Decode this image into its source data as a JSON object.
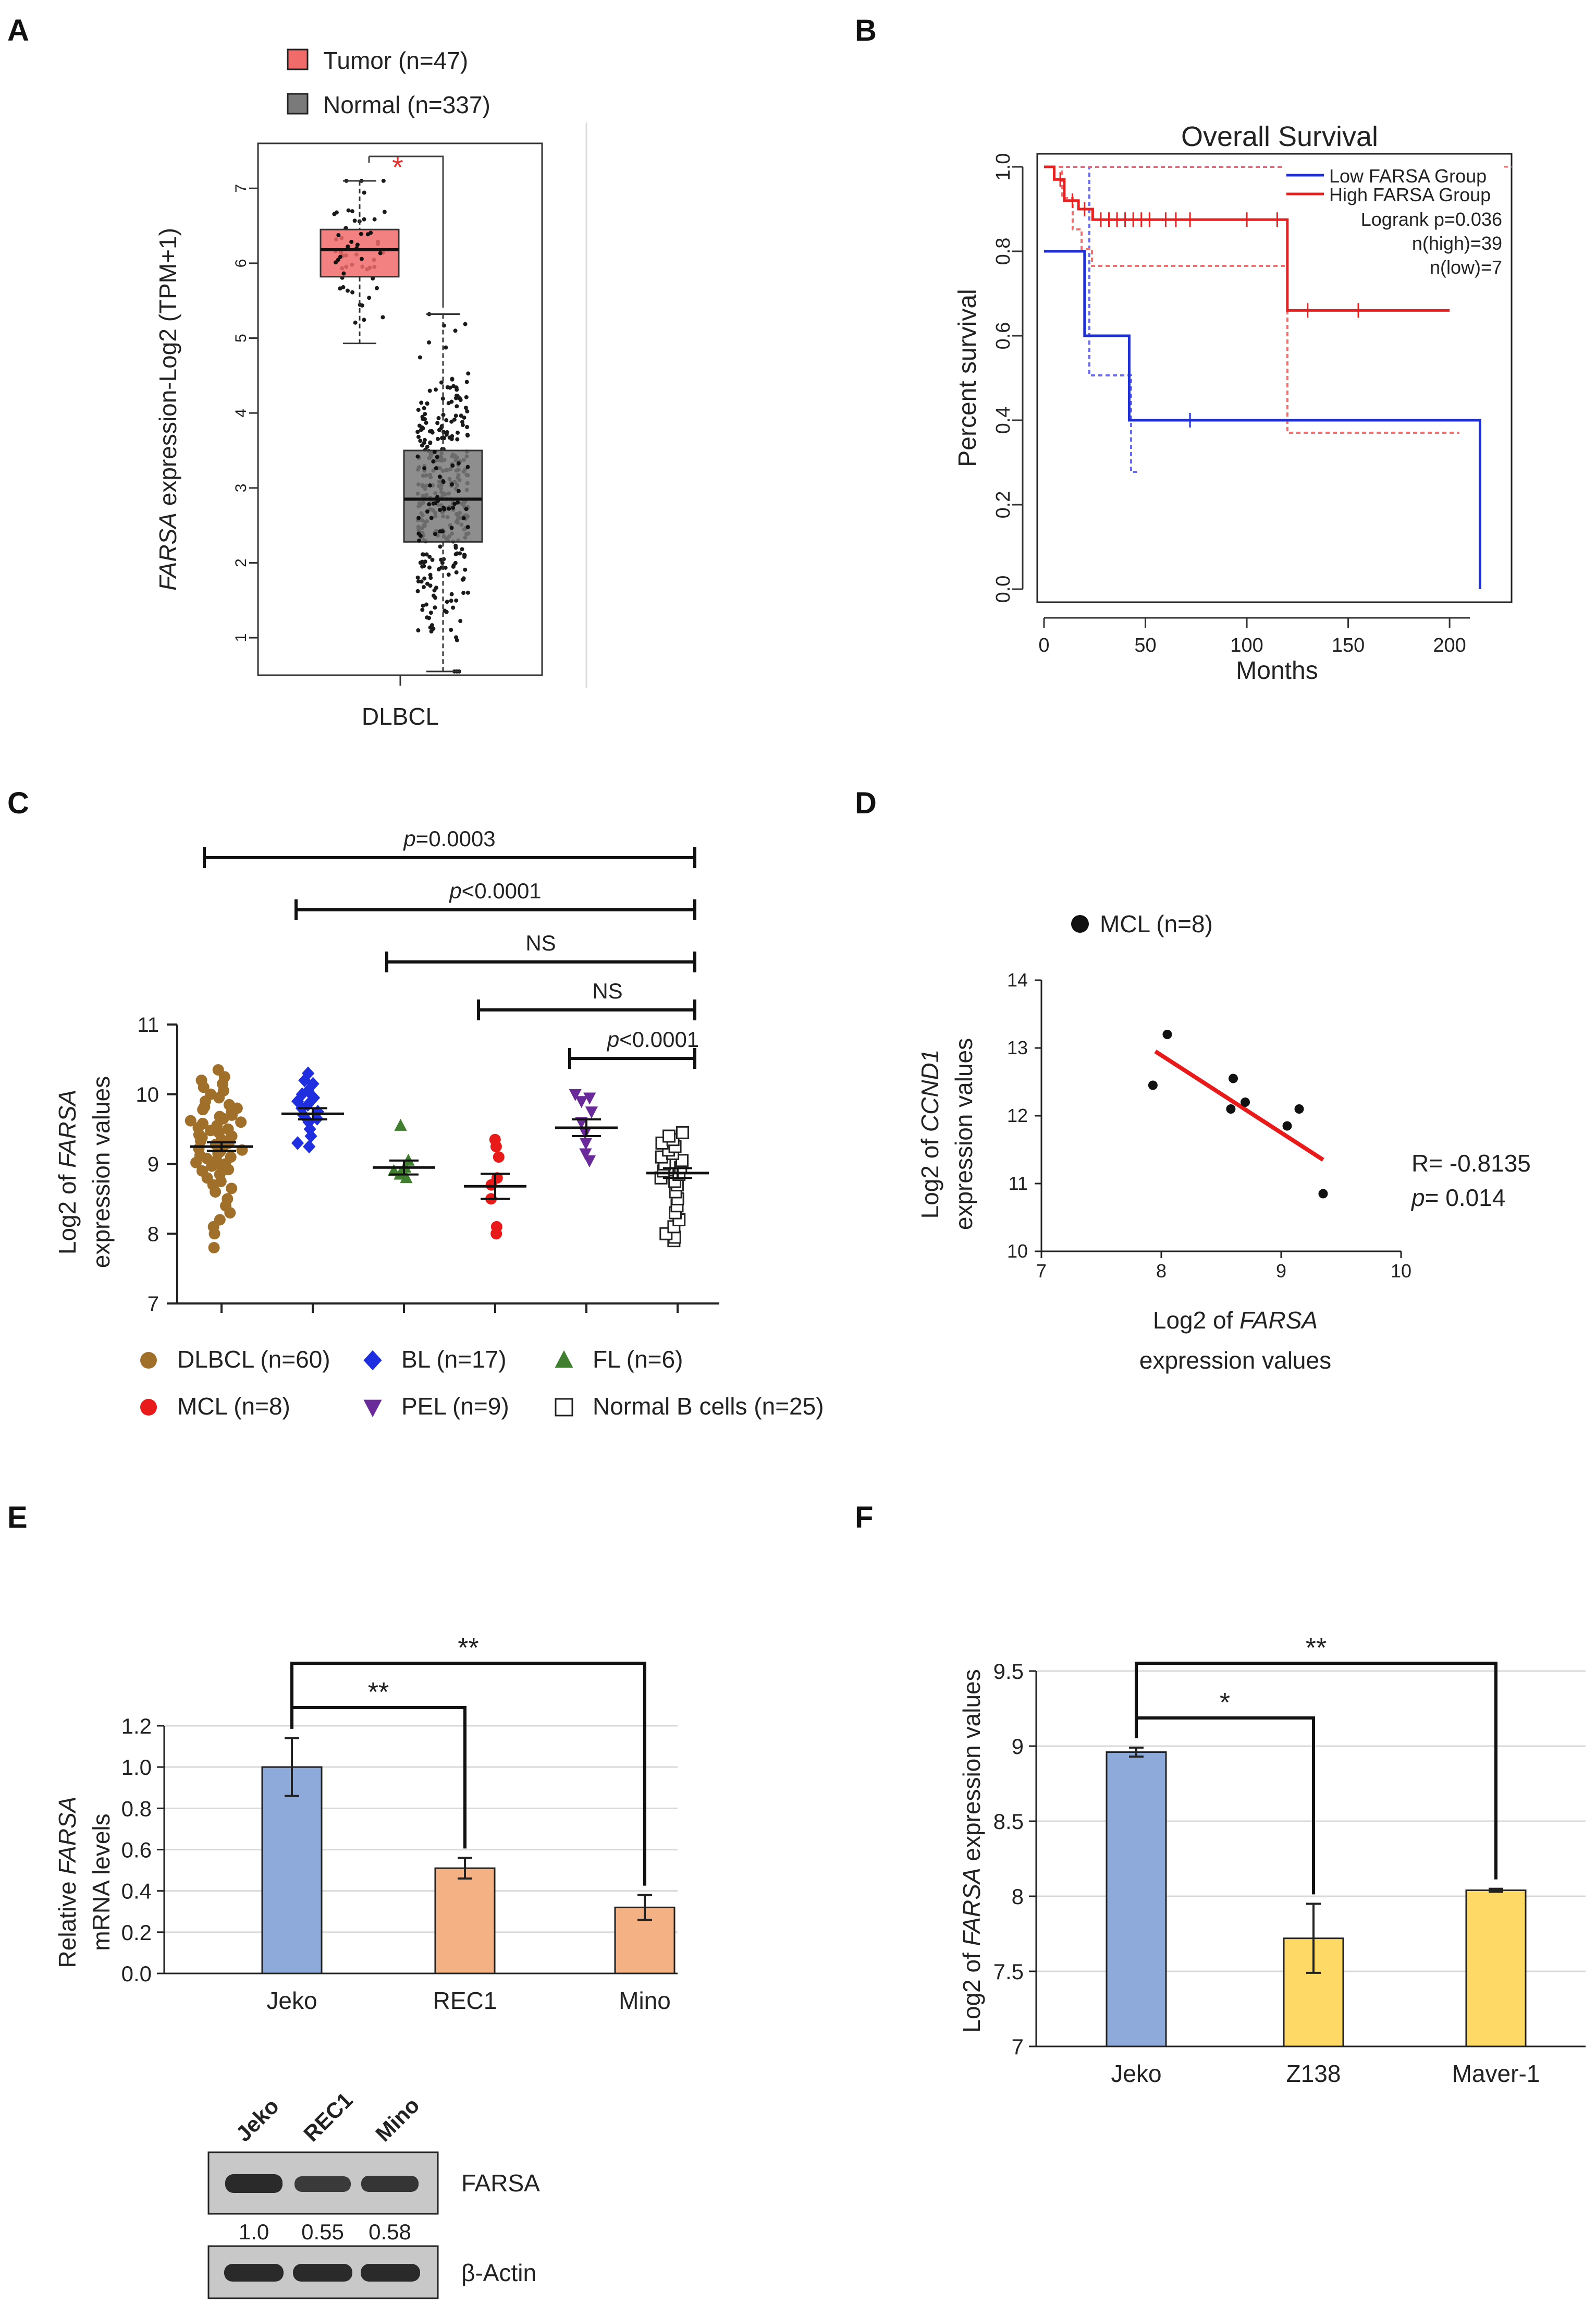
{
  "colors": {
    "tumor": "#f26b6b",
    "normal": "#7a7a7a",
    "sig_red": "#e8322f",
    "low": "#1f2fd6",
    "high": "#e82020",
    "dlbcl": "#a0702a",
    "bl": "#1f2fe0",
    "fl": "#3f7f2f",
    "mcl": "#e81a1a",
    "pel": "#6a2a9a",
    "normalb": "#222222",
    "jeko": "#8eaadb",
    "rec": "#f4b183",
    "yellow": "#ffd966"
  },
  "panels": {
    "A": {
      "letter": "A",
      "legend": [
        {
          "label": "Tumor (n=47)"
        },
        {
          "label": "Normal (n=337)"
        }
      ],
      "sig": "*",
      "ylabel_italic": "FARSA",
      "ylabel_rest": " expression-Log2 (TPM+1)",
      "xlabel": "DLBCL"
    },
    "B": {
      "letter": "B"
    },
    "C": {
      "letter": "C"
    },
    "D": {
      "letter": "D"
    },
    "E": {
      "letter": "E",
      "blot": {
        "lanes": [
          "Jeko",
          "REC1",
          "Mino"
        ],
        "band1_label": "FARSA",
        "quant": [
          "1.0",
          "0.55",
          "0.58"
        ],
        "band2_label": "β-Actin"
      }
    },
    "F": {
      "letter": "F"
    }
  },
  "chart_data": [
    {
      "id": "A",
      "type": "box",
      "ylim": [
        0.5,
        7.6
      ],
      "yticks": [
        "1",
        "2",
        "3",
        "4",
        "5",
        "6",
        "7"
      ],
      "groups": [
        {
          "name": "Tumor",
          "n": 47,
          "whisker_low": 4.93,
          "q1": 5.82,
          "median": 6.18,
          "q3": 6.45,
          "whisker_high": 7.1
        },
        {
          "name": "Normal",
          "n": 337,
          "whisker_low": 0.55,
          "q1": 2.28,
          "median": 2.85,
          "q3": 3.5,
          "whisker_high": 5.32
        }
      ]
    },
    {
      "id": "B",
      "type": "line",
      "title": "Overall Survival",
      "xlabel": "Months",
      "ylabel": "Percent survival",
      "xlim": [
        0,
        220
      ],
      "ylim": [
        0,
        1.0
      ],
      "xticks": [
        "0",
        "50",
        "100",
        "150",
        "200"
      ],
      "yticks": [
        "0.0",
        "0.2",
        "0.4",
        "0.6",
        "0.8",
        "1.0"
      ],
      "legend": [
        "Low FARSA Group",
        "High FARSA Group"
      ],
      "stats": [
        "Logrank p=0.036",
        "n(high)=39",
        "n(low)=7"
      ],
      "series": [
        {
          "name": "Low FARSA Group",
          "x": [
            0,
            20,
            20,
            42,
            42,
            215,
            215
          ],
          "y": [
            0.8,
            0.8,
            0.6,
            0.6,
            0.4,
            0.4,
            0.0
          ]
        },
        {
          "name": "High FARSA Group",
          "x": [
            0,
            5,
            5,
            10,
            10,
            17,
            17,
            24,
            24,
            120,
            120,
            200
          ],
          "y": [
            1.0,
            1.0,
            0.97,
            0.97,
            0.92,
            0.92,
            0.9,
            0.9,
            0.875,
            0.875,
            0.66,
            0.66
          ]
        }
      ]
    },
    {
      "id": "C",
      "type": "scatter",
      "ylabel_pre": "Log2 of ",
      "ylabel_italic": "FARSA",
      "ylabel_line2": "expression values",
      "ylim": [
        7,
        11
      ],
      "yticks": [
        "7",
        "8",
        "9",
        "10",
        "11"
      ],
      "groups": [
        {
          "name": "DLBCL",
          "legend": "DLBCL (n=60)",
          "mean": 9.25,
          "sem": 0.06,
          "values": [
            10.35,
            10.25,
            10.2,
            10.15,
            10.1,
            10.05,
            10.0,
            9.95,
            9.9,
            9.85,
            9.82,
            9.8,
            9.78,
            9.75,
            9.7,
            9.68,
            9.65,
            9.62,
            9.6,
            9.58,
            9.55,
            9.52,
            9.5,
            9.48,
            9.45,
            9.42,
            9.4,
            9.38,
            9.35,
            9.33,
            9.3,
            9.28,
            9.25,
            9.22,
            9.2,
            9.18,
            9.15,
            9.12,
            9.1,
            9.08,
            9.05,
            9.02,
            9.0,
            8.97,
            8.95,
            8.92,
            8.9,
            8.85,
            8.8,
            8.75,
            8.7,
            8.65,
            8.6,
            8.5,
            8.4,
            8.3,
            8.2,
            8.1,
            8.0,
            7.8
          ]
        },
        {
          "name": "BL",
          "legend": "BL (n=17)",
          "mean": 9.72,
          "sem": 0.08,
          "values": [
            10.3,
            10.2,
            10.15,
            10.05,
            10.0,
            9.95,
            9.9,
            9.85,
            9.8,
            9.75,
            9.7,
            9.65,
            9.6,
            9.5,
            9.4,
            9.3,
            9.25
          ]
        },
        {
          "name": "FL",
          "legend": "FL (n=6)",
          "mean": 8.95,
          "sem": 0.1,
          "values": [
            9.55,
            9.05,
            8.95,
            8.9,
            8.85,
            8.8
          ]
        },
        {
          "name": "MCL",
          "legend": "MCL (n=8)",
          "mean": 8.68,
          "sem": 0.18,
          "values": [
            9.35,
            9.25,
            9.1,
            8.8,
            8.7,
            8.5,
            8.1,
            8.0
          ]
        },
        {
          "name": "PEL",
          "legend": "PEL (n=9)",
          "mean": 9.52,
          "sem": 0.12,
          "values": [
            10.0,
            9.95,
            9.9,
            9.75,
            9.6,
            9.45,
            9.3,
            9.15,
            9.05
          ]
        },
        {
          "name": "Normal B cells",
          "legend": "Normal B cells (n=25)",
          "mean": 8.87,
          "sem": 0.07,
          "values": [
            9.45,
            9.4,
            9.35,
            9.3,
            9.25,
            9.2,
            9.15,
            9.1,
            9.05,
            9.0,
            8.95,
            8.9,
            8.85,
            8.8,
            8.75,
            8.7,
            8.6,
            8.5,
            8.4,
            8.3,
            8.2,
            8.1,
            8.0,
            7.9,
            7.95
          ]
        }
      ],
      "comparisons": [
        {
          "from": 0,
          "to": 5,
          "label": "p=0.0003"
        },
        {
          "from": 1,
          "to": 5,
          "label": "p<0.0001"
        },
        {
          "from": 2,
          "to": 5,
          "label": "NS"
        },
        {
          "from": 3,
          "to": 5,
          "label": "NS"
        },
        {
          "from": 4,
          "to": 5,
          "label": "p<0.0001"
        }
      ]
    },
    {
      "id": "D",
      "type": "scatter",
      "legend": "MCL (n=8)",
      "xlabel_pre": "Log2 of ",
      "xlabel_italic": "FARSA",
      "xlabel_line2": "expression values",
      "ylabel_pre": "Log2 of ",
      "ylabel_italic": "CCND1",
      "ylabel_line2": "expression values",
      "xlim": [
        7,
        10
      ],
      "ylim": [
        10,
        14
      ],
      "xticks": [
        "7",
        "8",
        "9",
        "10"
      ],
      "yticks": [
        "10",
        "11",
        "12",
        "13",
        "14"
      ],
      "x": [
        7.93,
        8.05,
        8.58,
        8.6,
        8.7,
        9.05,
        9.15,
        9.35
      ],
      "y": [
        12.45,
        13.2,
        12.1,
        12.55,
        12.2,
        11.85,
        12.1,
        10.85
      ],
      "fit": {
        "x": [
          7.95,
          9.35
        ],
        "y": [
          12.95,
          11.35
        ]
      },
      "stats": {
        "r": "R= -0.8135",
        "p_label": "p",
        "p_value": "= 0.014"
      }
    },
    {
      "id": "E",
      "type": "bar",
      "categories": [
        "Jeko",
        "REC1",
        "Mino"
      ],
      "values": [
        1.0,
        0.51,
        0.32
      ],
      "errors": [
        0.14,
        0.05,
        0.06
      ],
      "ylim": [
        0,
        1.2
      ],
      "yticks": [
        "0.0",
        "0.2",
        "0.4",
        "0.6",
        "0.8",
        "1.0",
        "1.2"
      ],
      "ylabel_pre": "Relative ",
      "ylabel_italic": "FARSA",
      "ylabel_line2": "mRNA levels",
      "significance": [
        {
          "from": 0,
          "to": 1,
          "label": "**"
        },
        {
          "from": 0,
          "to": 2,
          "label": "**"
        }
      ]
    },
    {
      "id": "F",
      "type": "bar",
      "categories": [
        "Jeko",
        "Z138",
        "Maver-1"
      ],
      "values": [
        8.96,
        7.72,
        8.04
      ],
      "errors": [
        0.03,
        0.23,
        0.01
      ],
      "ylim": [
        7,
        9.5
      ],
      "yticks": [
        "7",
        "7.5",
        "8",
        "8.5",
        "9",
        "9.5"
      ],
      "ylabel_pre": "Log2 of ",
      "ylabel_italic": "FARSA",
      "ylabel_rest": " expression values",
      "significance": [
        {
          "from": 0,
          "to": 1,
          "label": "*"
        },
        {
          "from": 0,
          "to": 2,
          "label": "**"
        }
      ]
    }
  ]
}
